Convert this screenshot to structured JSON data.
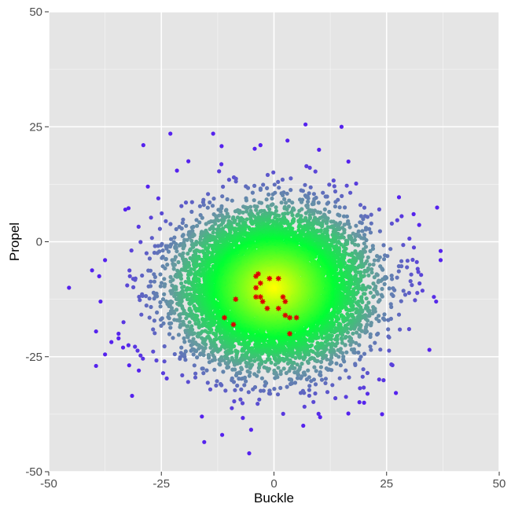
{
  "chart_data": {
    "type": "scatter",
    "title": "",
    "xlabel": "Buckle",
    "ylabel": "Propel",
    "xlim": [
      -50,
      50
    ],
    "ylim": [
      -50,
      50
    ],
    "x_ticks": [
      -50,
      -25,
      0,
      25,
      50
    ],
    "y_ticks": [
      -50,
      -25,
      0,
      25,
      50
    ],
    "x_tick_labels": [
      "-50",
      "-25",
      "0",
      "25",
      "50"
    ],
    "y_tick_labels": [
      "-50",
      "-25",
      "0",
      "25",
      "50"
    ],
    "grid": true,
    "legend": "none",
    "background": "#e5e5e5",
    "colors": {
      "gridline": "#ffffff",
      "density_high": "#ffff00",
      "density_mid": "#00ff33",
      "density_low": "#6699a0",
      "density_outlier": "#5522ee",
      "highlight": "#dd0000"
    },
    "cloud": {
      "description": "dense elliptical point cloud colored by density",
      "center": [
        0,
        -10
      ],
      "approx_spread_x": 10,
      "approx_spread_y": 8,
      "approx_points": 9000
    },
    "outliers": [
      [
        -45.5,
        -10
      ],
      [
        -39.5,
        -19.5
      ],
      [
        -39.5,
        -27
      ],
      [
        -38.5,
        -13
      ],
      [
        -38.8,
        -7.5
      ],
      [
        -37.5,
        -4
      ],
      [
        -37.5,
        -24.5
      ],
      [
        -34.5,
        -21
      ],
      [
        -34.5,
        -20
      ],
      [
        -33.5,
        -23
      ],
      [
        -31.5,
        -33.5
      ],
      [
        -29,
        21
      ],
      [
        -23,
        23.5
      ],
      [
        -13.5,
        23.5
      ],
      [
        -11.5,
        -42
      ],
      [
        -5.5,
        -46
      ],
      [
        7,
        25.5
      ],
      [
        15,
        25
      ],
      [
        37,
        -2
      ],
      [
        37,
        -4
      ],
      [
        35.5,
        -12
      ],
      [
        36,
        -13
      ],
      [
        34.5,
        -23.5
      ],
      [
        24,
        -37.5
      ],
      [
        6.5,
        -40
      ],
      [
        -19,
        17.5
      ],
      [
        -3,
        21
      ],
      [
        3,
        22
      ],
      [
        -30,
        -28
      ],
      [
        31,
        6
      ],
      [
        30,
        -19
      ],
      [
        -33,
        7
      ],
      [
        10,
        20
      ],
      [
        20,
        -35
      ],
      [
        -28,
        12
      ],
      [
        -16,
        -38
      ]
    ],
    "highlight_series": {
      "marker": "asterisk",
      "points": [
        [
          -3.5,
          -7
        ],
        [
          -4,
          -7.5
        ],
        [
          -1,
          -8
        ],
        [
          1,
          -8
        ],
        [
          -3,
          -9
        ],
        [
          -4,
          -10
        ],
        [
          -4,
          -12
        ],
        [
          -3,
          -12
        ],
        [
          2,
          -12
        ],
        [
          2.5,
          -13
        ],
        [
          -2.5,
          -13
        ],
        [
          -8.5,
          -12.5
        ],
        [
          -1.5,
          -14.5
        ],
        [
          1,
          -14.5
        ],
        [
          2.5,
          -16
        ],
        [
          3.5,
          -16.5
        ],
        [
          5,
          -16.5
        ],
        [
          -11,
          -16.5
        ],
        [
          -9,
          -18
        ],
        [
          3.5,
          -20
        ]
      ]
    }
  }
}
